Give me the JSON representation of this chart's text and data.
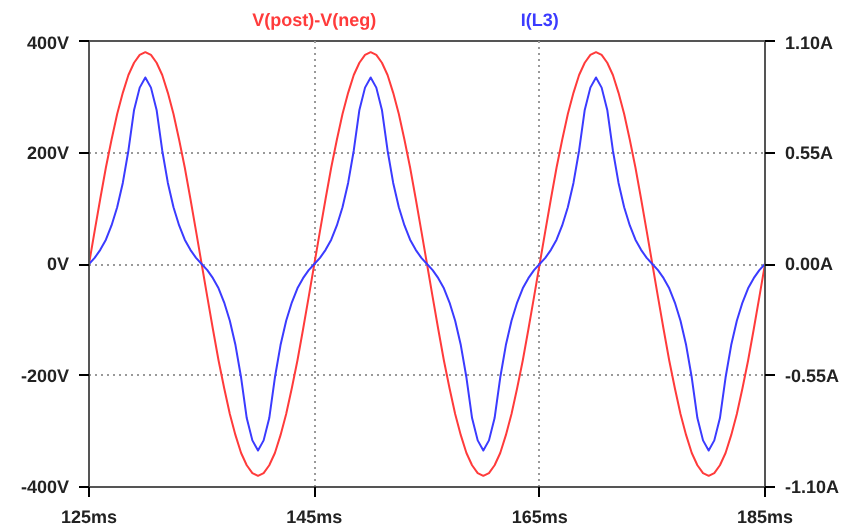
{
  "chart_data": {
    "type": "line",
    "x": [
      125,
      125.5,
      126,
      126.5,
      127,
      127.5,
      128,
      128.5,
      129,
      129.5,
      130,
      130.5,
      131,
      131.5,
      132,
      132.5,
      133,
      133.5,
      134,
      134.5,
      135,
      135.5,
      136,
      136.5,
      137,
      137.5,
      138,
      138.5,
      139,
      139.5,
      140,
      140.5,
      141,
      141.5,
      142,
      142.5,
      143,
      143.5,
      144,
      144.5,
      145,
      145.5,
      146,
      146.5,
      147,
      147.5,
      148,
      148.5,
      149,
      149.5,
      150,
      150.5,
      151,
      151.5,
      152,
      152.5,
      153,
      153.5,
      154,
      154.5,
      155,
      155.5,
      156,
      156.5,
      157,
      157.5,
      158,
      158.5,
      159,
      159.5,
      160,
      160.5,
      161,
      161.5,
      162,
      162.5,
      163,
      163.5,
      164,
      164.5,
      165,
      165.5,
      166,
      166.5,
      167,
      167.5,
      168,
      168.5,
      169,
      169.5,
      170,
      170.5,
      171,
      171.5,
      172,
      172.5,
      173,
      173.5,
      174,
      174.5,
      175,
      175.5,
      176,
      176.5,
      177,
      177.5,
      178,
      178.5,
      179,
      179.5,
      180,
      180.5,
      181,
      181.5,
      182,
      182.5,
      183,
      183.5,
      184,
      184.5,
      185
    ],
    "series": [
      {
        "name": "V(post)-V(neg)",
        "color": "#ff3b3b",
        "values": [
          0,
          59,
          117,
          173,
          223,
          269,
          307,
          339,
          361,
          375,
          380,
          375,
          361,
          339,
          307,
          269,
          223,
          173,
          117,
          59,
          0,
          -59,
          -117,
          -173,
          -223,
          -269,
          -307,
          -339,
          -361,
          -375,
          -380,
          -375,
          -361,
          -339,
          -307,
          -269,
          -223,
          -173,
          -117,
          -59,
          0,
          59,
          117,
          173,
          223,
          269,
          307,
          339,
          361,
          375,
          380,
          375,
          361,
          339,
          307,
          269,
          223,
          173,
          117,
          59,
          0,
          -59,
          -117,
          -173,
          -223,
          -269,
          -307,
          -339,
          -361,
          -375,
          -380,
          -375,
          -361,
          -339,
          -307,
          -269,
          -223,
          -173,
          -117,
          -59,
          0,
          59,
          117,
          173,
          223,
          269,
          307,
          339,
          361,
          375,
          380,
          375,
          361,
          339,
          307,
          269,
          223,
          173,
          117,
          59,
          0,
          -59,
          -117,
          -173,
          -223,
          -269,
          -307,
          -339,
          -361,
          -375,
          -380,
          -375,
          -361,
          -339,
          -307,
          -269,
          -223,
          -173,
          -117,
          -59,
          0
        ]
      },
      {
        "name": "I(L3)",
        "color": "#3b3bff",
        "axis": "y2",
        "values": [
          0,
          0.03,
          0.07,
          0.12,
          0.19,
          0.28,
          0.4,
          0.56,
          0.76,
          0.87,
          0.92,
          0.87,
          0.76,
          0.56,
          0.4,
          0.28,
          0.19,
          0.12,
          0.07,
          0.03,
          0,
          -0.03,
          -0.07,
          -0.12,
          -0.19,
          -0.28,
          -0.4,
          -0.56,
          -0.76,
          -0.87,
          -0.92,
          -0.87,
          -0.76,
          -0.56,
          -0.4,
          -0.28,
          -0.19,
          -0.12,
          -0.07,
          -0.03,
          0,
          0.03,
          0.07,
          0.12,
          0.19,
          0.28,
          0.4,
          0.56,
          0.76,
          0.87,
          0.92,
          0.87,
          0.76,
          0.56,
          0.4,
          0.28,
          0.19,
          0.12,
          0.07,
          0.03,
          0,
          -0.03,
          -0.07,
          -0.12,
          -0.19,
          -0.28,
          -0.4,
          -0.56,
          -0.76,
          -0.87,
          -0.92,
          -0.87,
          -0.76,
          -0.56,
          -0.4,
          -0.28,
          -0.19,
          -0.12,
          -0.07,
          -0.03,
          0,
          0.03,
          0.07,
          0.12,
          0.19,
          0.28,
          0.4,
          0.56,
          0.76,
          0.87,
          0.92,
          0.87,
          0.76,
          0.56,
          0.4,
          0.28,
          0.19,
          0.12,
          0.07,
          0.03,
          0,
          -0.03,
          -0.07,
          -0.12,
          -0.19,
          -0.28,
          -0.4,
          -0.56,
          -0.76,
          -0.87,
          -0.92,
          -0.87,
          -0.76,
          -0.56,
          -0.4,
          -0.28,
          -0.19,
          -0.12,
          -0.07,
          -0.03,
          0
        ]
      }
    ],
    "xlim": [
      125,
      185
    ],
    "xticks": [
      {
        "value": 125,
        "label": "125ms"
      },
      {
        "value": 145,
        "label": "145ms"
      },
      {
        "value": 165,
        "label": "165ms"
      },
      {
        "value": 185,
        "label": "185ms"
      }
    ],
    "ylim": [
      -400,
      400
    ],
    "yticks": [
      {
        "value": -400,
        "label": "-400V"
      },
      {
        "value": -200,
        "label": "-200V"
      },
      {
        "value": 0,
        "label": "0V"
      },
      {
        "value": 200,
        "label": "200V"
      },
      {
        "value": 400,
        "label": "400V"
      }
    ],
    "y2lim": [
      -1.1,
      1.1
    ],
    "y2ticks": [
      {
        "value": -1.1,
        "label": "-1.10A"
      },
      {
        "value": -0.55,
        "label": "-0.55A"
      },
      {
        "value": 0,
        "label": "0.00A"
      },
      {
        "value": 0.55,
        "label": "0.55A"
      },
      {
        "value": 1.1,
        "label": "1.10A"
      }
    ],
    "grid": true,
    "line_style": "solid"
  }
}
